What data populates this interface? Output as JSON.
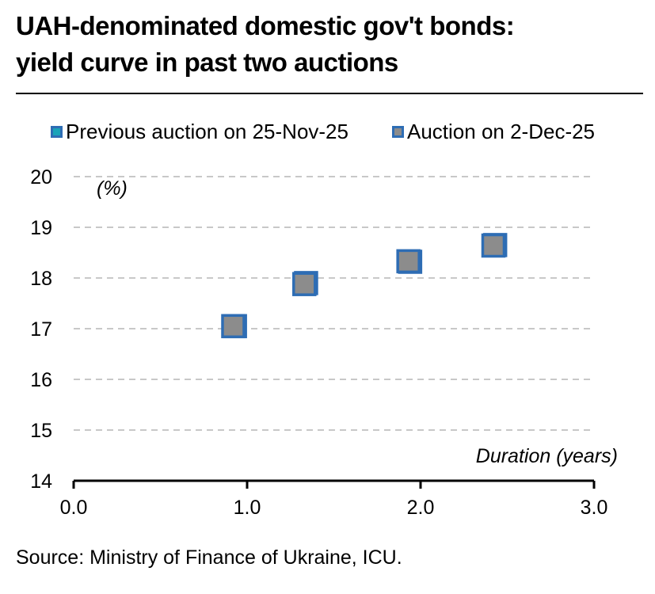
{
  "header": {
    "title_line1": "UAH-denominated domestic gov't bonds:",
    "title_line2": "yield curve in past two auctions"
  },
  "footer": {
    "source": "Source: Ministry of Finance of Ukraine, ICU."
  },
  "colors": {
    "prev_fill": "#1aa3b8",
    "curr_fill": "#8c8c8c",
    "marker_border": "#2e6db4",
    "grid": "#c8c8c8"
  },
  "chart_data": {
    "type": "scatter",
    "xlabel": "Duration (years)",
    "ylabel": "(%)",
    "xlim": [
      0,
      3
    ],
    "ylim": [
      14,
      20
    ],
    "xticks": [
      "0.0",
      "1.0",
      "2.0",
      "3.0"
    ],
    "yticks": [
      "14",
      "15",
      "16",
      "17",
      "18",
      "19",
      "20"
    ],
    "grid": true,
    "legend_position": "top",
    "series": [
      {
        "name": "Previous auction on 25-Nov-25",
        "color": "#1aa3b8",
        "x": [
          0.93,
          1.34,
          1.94,
          2.43
        ],
        "y": [
          17.05,
          17.9,
          18.32,
          18.65
        ]
      },
      {
        "name": "Auction on 2-Dec-25",
        "color": "#8c8c8c",
        "x": [
          0.92,
          1.33,
          1.93,
          2.42
        ],
        "y": [
          17.05,
          17.88,
          18.33,
          18.64
        ]
      }
    ]
  }
}
